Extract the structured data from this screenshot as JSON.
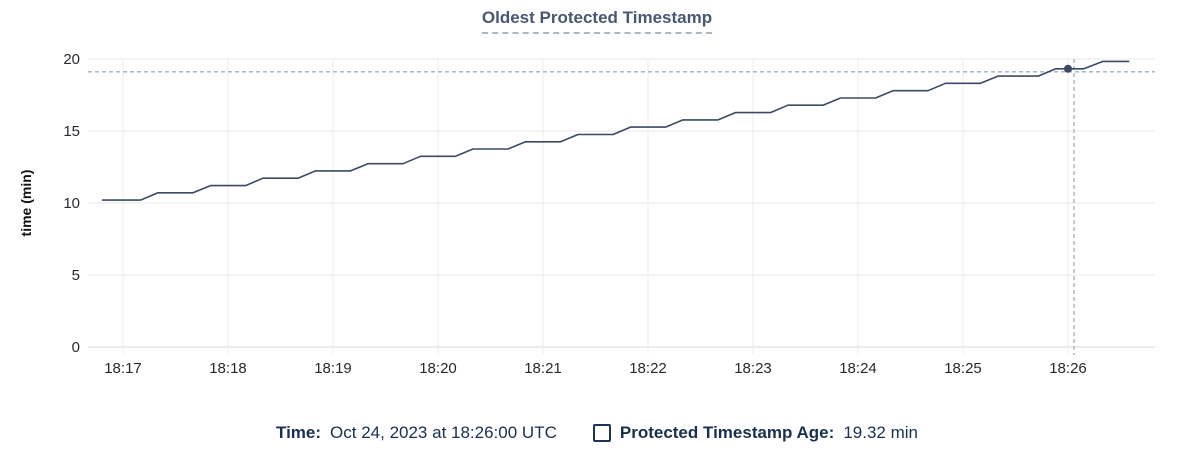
{
  "title": "Oldest Protected Timestamp",
  "legend": {
    "time_label": "Time:",
    "time_value": "Oct 24, 2023 at 18:26:00 UTC",
    "series_label": "Protected Timestamp Age:",
    "series_value": "19.32 min"
  },
  "colors": {
    "line": "#3b4a64",
    "title": "#475872",
    "legend_text": "#17304f",
    "grid": "#e9e9e9",
    "grid_vertical": "#ededed",
    "baseline": "#d7d7d7",
    "crosshair": "#9db0c0",
    "tick_text": "#26292e"
  },
  "chart_data": {
    "type": "line",
    "title": "Oldest Protected Timestamp",
    "xlabel": "",
    "ylabel": "time (min)",
    "ylim": [
      0,
      20
    ],
    "yticks": [
      0,
      5,
      10,
      15,
      20
    ],
    "xticks": [
      "18:17",
      "18:18",
      "18:19",
      "18:20",
      "18:21",
      "18:22",
      "18:23",
      "18:24",
      "18:25",
      "18:26"
    ],
    "x_visible_range": [
      "18:16:40",
      "18:26:50"
    ],
    "grid": true,
    "legend_position": "bottom",
    "series": [
      {
        "name": "Protected Timestamp Age",
        "unit": "min",
        "color": "#3b4a64",
        "points": [
          [
            "18:16:48",
            10.2
          ],
          [
            "18:17:10",
            10.2
          ],
          [
            "18:17:20",
            10.71
          ],
          [
            "18:17:40",
            10.71
          ],
          [
            "18:17:50",
            11.21
          ],
          [
            "18:18:10",
            11.21
          ],
          [
            "18:18:20",
            11.72
          ],
          [
            "18:18:40",
            11.72
          ],
          [
            "18:18:50",
            12.23
          ],
          [
            "18:19:10",
            12.23
          ],
          [
            "18:19:20",
            12.73
          ],
          [
            "18:19:40",
            12.73
          ],
          [
            "18:19:50",
            13.24
          ],
          [
            "18:20:10",
            13.24
          ],
          [
            "18:20:20",
            13.75
          ],
          [
            "18:20:40",
            13.75
          ],
          [
            "18:20:50",
            14.25
          ],
          [
            "18:21:10",
            14.25
          ],
          [
            "18:21:20",
            14.76
          ],
          [
            "18:21:40",
            14.76
          ],
          [
            "18:21:50",
            15.27
          ],
          [
            "18:22:10",
            15.27
          ],
          [
            "18:22:20",
            15.77
          ],
          [
            "18:22:40",
            15.77
          ],
          [
            "18:22:50",
            16.28
          ],
          [
            "18:23:10",
            16.28
          ],
          [
            "18:23:20",
            16.79
          ],
          [
            "18:23:40",
            16.79
          ],
          [
            "18:23:50",
            17.29
          ],
          [
            "18:24:10",
            17.29
          ],
          [
            "18:24:20",
            17.8
          ],
          [
            "18:24:40",
            17.8
          ],
          [
            "18:24:50",
            18.31
          ],
          [
            "18:25:10",
            18.31
          ],
          [
            "18:25:20",
            18.81
          ],
          [
            "18:25:43",
            18.81
          ],
          [
            "18:25:53",
            19.32
          ],
          [
            "18:26:09",
            19.32
          ],
          [
            "18:26:20",
            19.83
          ],
          [
            "18:26:35",
            19.83
          ]
        ]
      }
    ],
    "highlight_point": {
      "time": "18:26:00",
      "value": 19.32,
      "date": "Oct 24, 2023",
      "value_label": "19.32 min"
    }
  }
}
